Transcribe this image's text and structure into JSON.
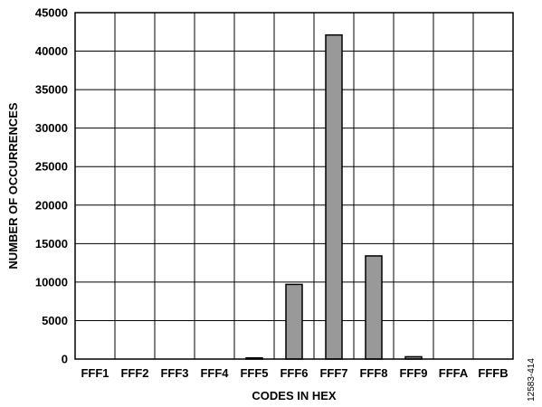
{
  "chart_data": {
    "type": "bar",
    "categories": [
      "FFF1",
      "FFF2",
      "FFF3",
      "FFF4",
      "FFF5",
      "FFF6",
      "FFF7",
      "FFF8",
      "FFF9",
      "FFFA",
      "FFFB"
    ],
    "values": [
      0,
      0,
      0,
      0,
      150,
      9700,
      42100,
      13400,
      300,
      0,
      0
    ],
    "xlabel": "CODES IN HEX",
    "ylabel": "NUMBER OF OCCURRENCES",
    "ylim": [
      0,
      45000
    ],
    "yticks": [
      0,
      5000,
      10000,
      15000,
      20000,
      25000,
      30000,
      35000,
      40000,
      45000
    ],
    "grid": true,
    "bar_color": "#999999",
    "bar_edge_color": "#000000"
  },
  "figure_id": "12583-414"
}
